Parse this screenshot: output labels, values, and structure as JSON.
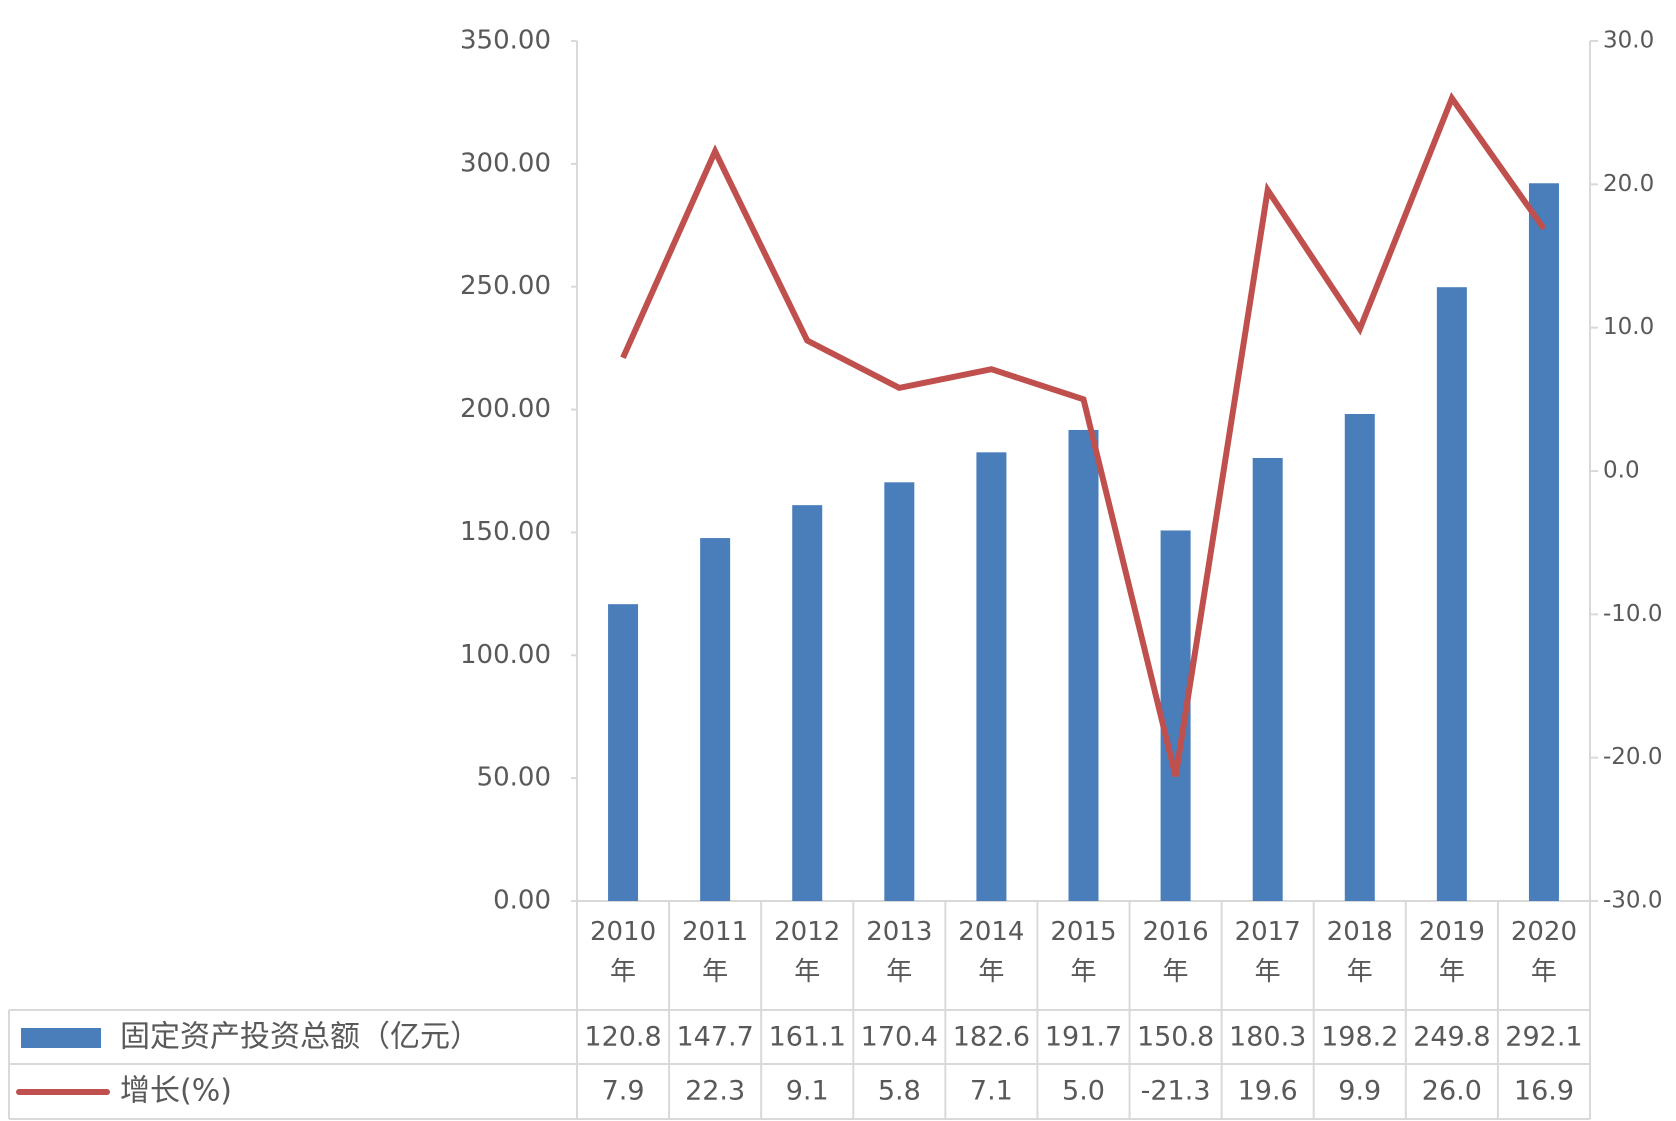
{
  "chart_data": {
    "type": "bar",
    "categories": [
      "2010年",
      "2011年",
      "2012年",
      "2013年",
      "2014年",
      "2015年",
      "2016年",
      "2017年",
      "2018年",
      "2019年",
      "2020年"
    ],
    "series": [
      {
        "name": "固定资产投资总额（亿元）",
        "type": "bar",
        "color": "#4a7ebb",
        "values": [
          120.8,
          147.7,
          161.1,
          170.4,
          182.6,
          191.7,
          150.8,
          180.3,
          198.2,
          249.8,
          292.1
        ]
      },
      {
        "name": "增长(%)",
        "type": "line",
        "axis": "y2",
        "color": "#c0504d",
        "values": [
          7.9,
          22.3,
          9.1,
          5.8,
          7.1,
          5.0,
          -21.3,
          19.6,
          9.9,
          26.0,
          16.9
        ],
        "value_labels": [
          "7.9",
          "22.3",
          "9.1",
          "5.8",
          "7.1",
          "5.0",
          "-21.3",
          "19.6",
          "9.9",
          "26.0",
          "16.9"
        ]
      }
    ],
    "ylim": [
      0,
      350
    ],
    "yticks": [
      {
        "value": 0,
        "label": "0.00"
      },
      {
        "value": 50,
        "label": "50.00"
      },
      {
        "value": 100,
        "label": "100.00"
      },
      {
        "value": 150,
        "label": "150.00"
      },
      {
        "value": 200,
        "label": "200.00"
      },
      {
        "value": 250,
        "label": "250.00"
      },
      {
        "value": 300,
        "label": "300.00"
      },
      {
        "value": 350,
        "label": "350.00"
      }
    ],
    "y2lim": [
      -30,
      30
    ],
    "y2ticks": [
      {
        "value": -30,
        "label": "-30.0"
      },
      {
        "value": -20,
        "label": "-20.0"
      },
      {
        "value": -10,
        "label": "-10.0"
      },
      {
        "value": 0,
        "label": "0.0"
      },
      {
        "value": 10,
        "label": "10.0"
      },
      {
        "value": 20,
        "label": "20.0"
      },
      {
        "value": 30,
        "label": "30.0"
      }
    ]
  }
}
